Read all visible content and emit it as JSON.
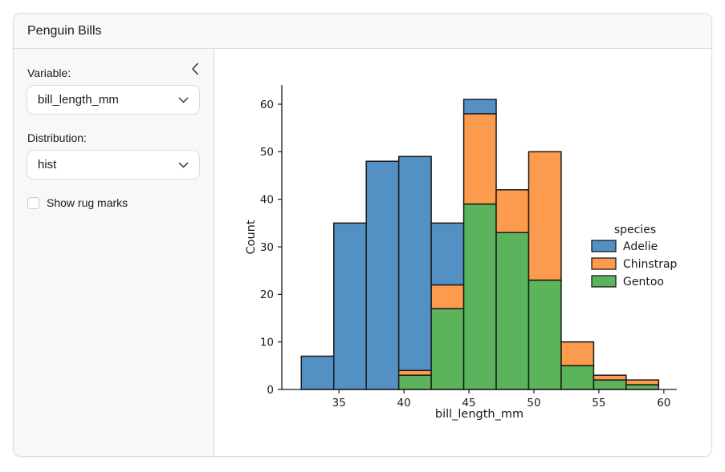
{
  "header": {
    "title": "Penguin Bills"
  },
  "sidebar": {
    "collapse_icon": "chevron-left",
    "variable": {
      "label": "Variable:",
      "value": "bill_length_mm",
      "dropdown_icon": "chevron-down"
    },
    "distribution": {
      "label": "Distribution:",
      "value": "hist",
      "dropdown_icon": "chevron-down"
    },
    "rug": {
      "label": "Show rug marks",
      "checked": false
    }
  },
  "chart_data": {
    "type": "bar",
    "subtype": "stacked_histogram",
    "title": "",
    "xlabel": "bill_length_mm",
    "ylabel": "Count",
    "bin_edges": [
      32.1,
      34.6,
      37.1,
      39.6,
      42.1,
      44.6,
      47.1,
      49.6,
      52.1,
      54.6,
      57.1,
      59.6
    ],
    "series": [
      {
        "name": "Adelie",
        "color": "#5390C3",
        "values": [
          7,
          35,
          48,
          45,
          13,
          3,
          0,
          0,
          0,
          0,
          0
        ]
      },
      {
        "name": "Chinstrap",
        "color": "#FC9A4E",
        "values": [
          0,
          0,
          0,
          1,
          5,
          19,
          9,
          27,
          5,
          1,
          1
        ]
      },
      {
        "name": "Gentoo",
        "color": "#5BB45C",
        "values": [
          0,
          0,
          0,
          3,
          17,
          39,
          33,
          23,
          5,
          2,
          1
        ]
      }
    ],
    "bin_totals": [
      7,
      35,
      48,
      49,
      35,
      61,
      42,
      50,
      10,
      3,
      2
    ],
    "stack_order_bottom_to_top": [
      "Gentoo",
      "Chinstrap",
      "Adelie"
    ],
    "bar_edge_color": "#1a1a1a",
    "x_ticks": [
      35,
      40,
      45,
      50,
      55,
      60
    ],
    "y_ticks": [
      0,
      10,
      20,
      30,
      40,
      50,
      60
    ],
    "xlim": [
      30.6,
      61.0
    ],
    "ylim": [
      0,
      64.05
    ],
    "legend": {
      "title": "species",
      "position": "center-right",
      "frame": false
    },
    "grid": false
  }
}
